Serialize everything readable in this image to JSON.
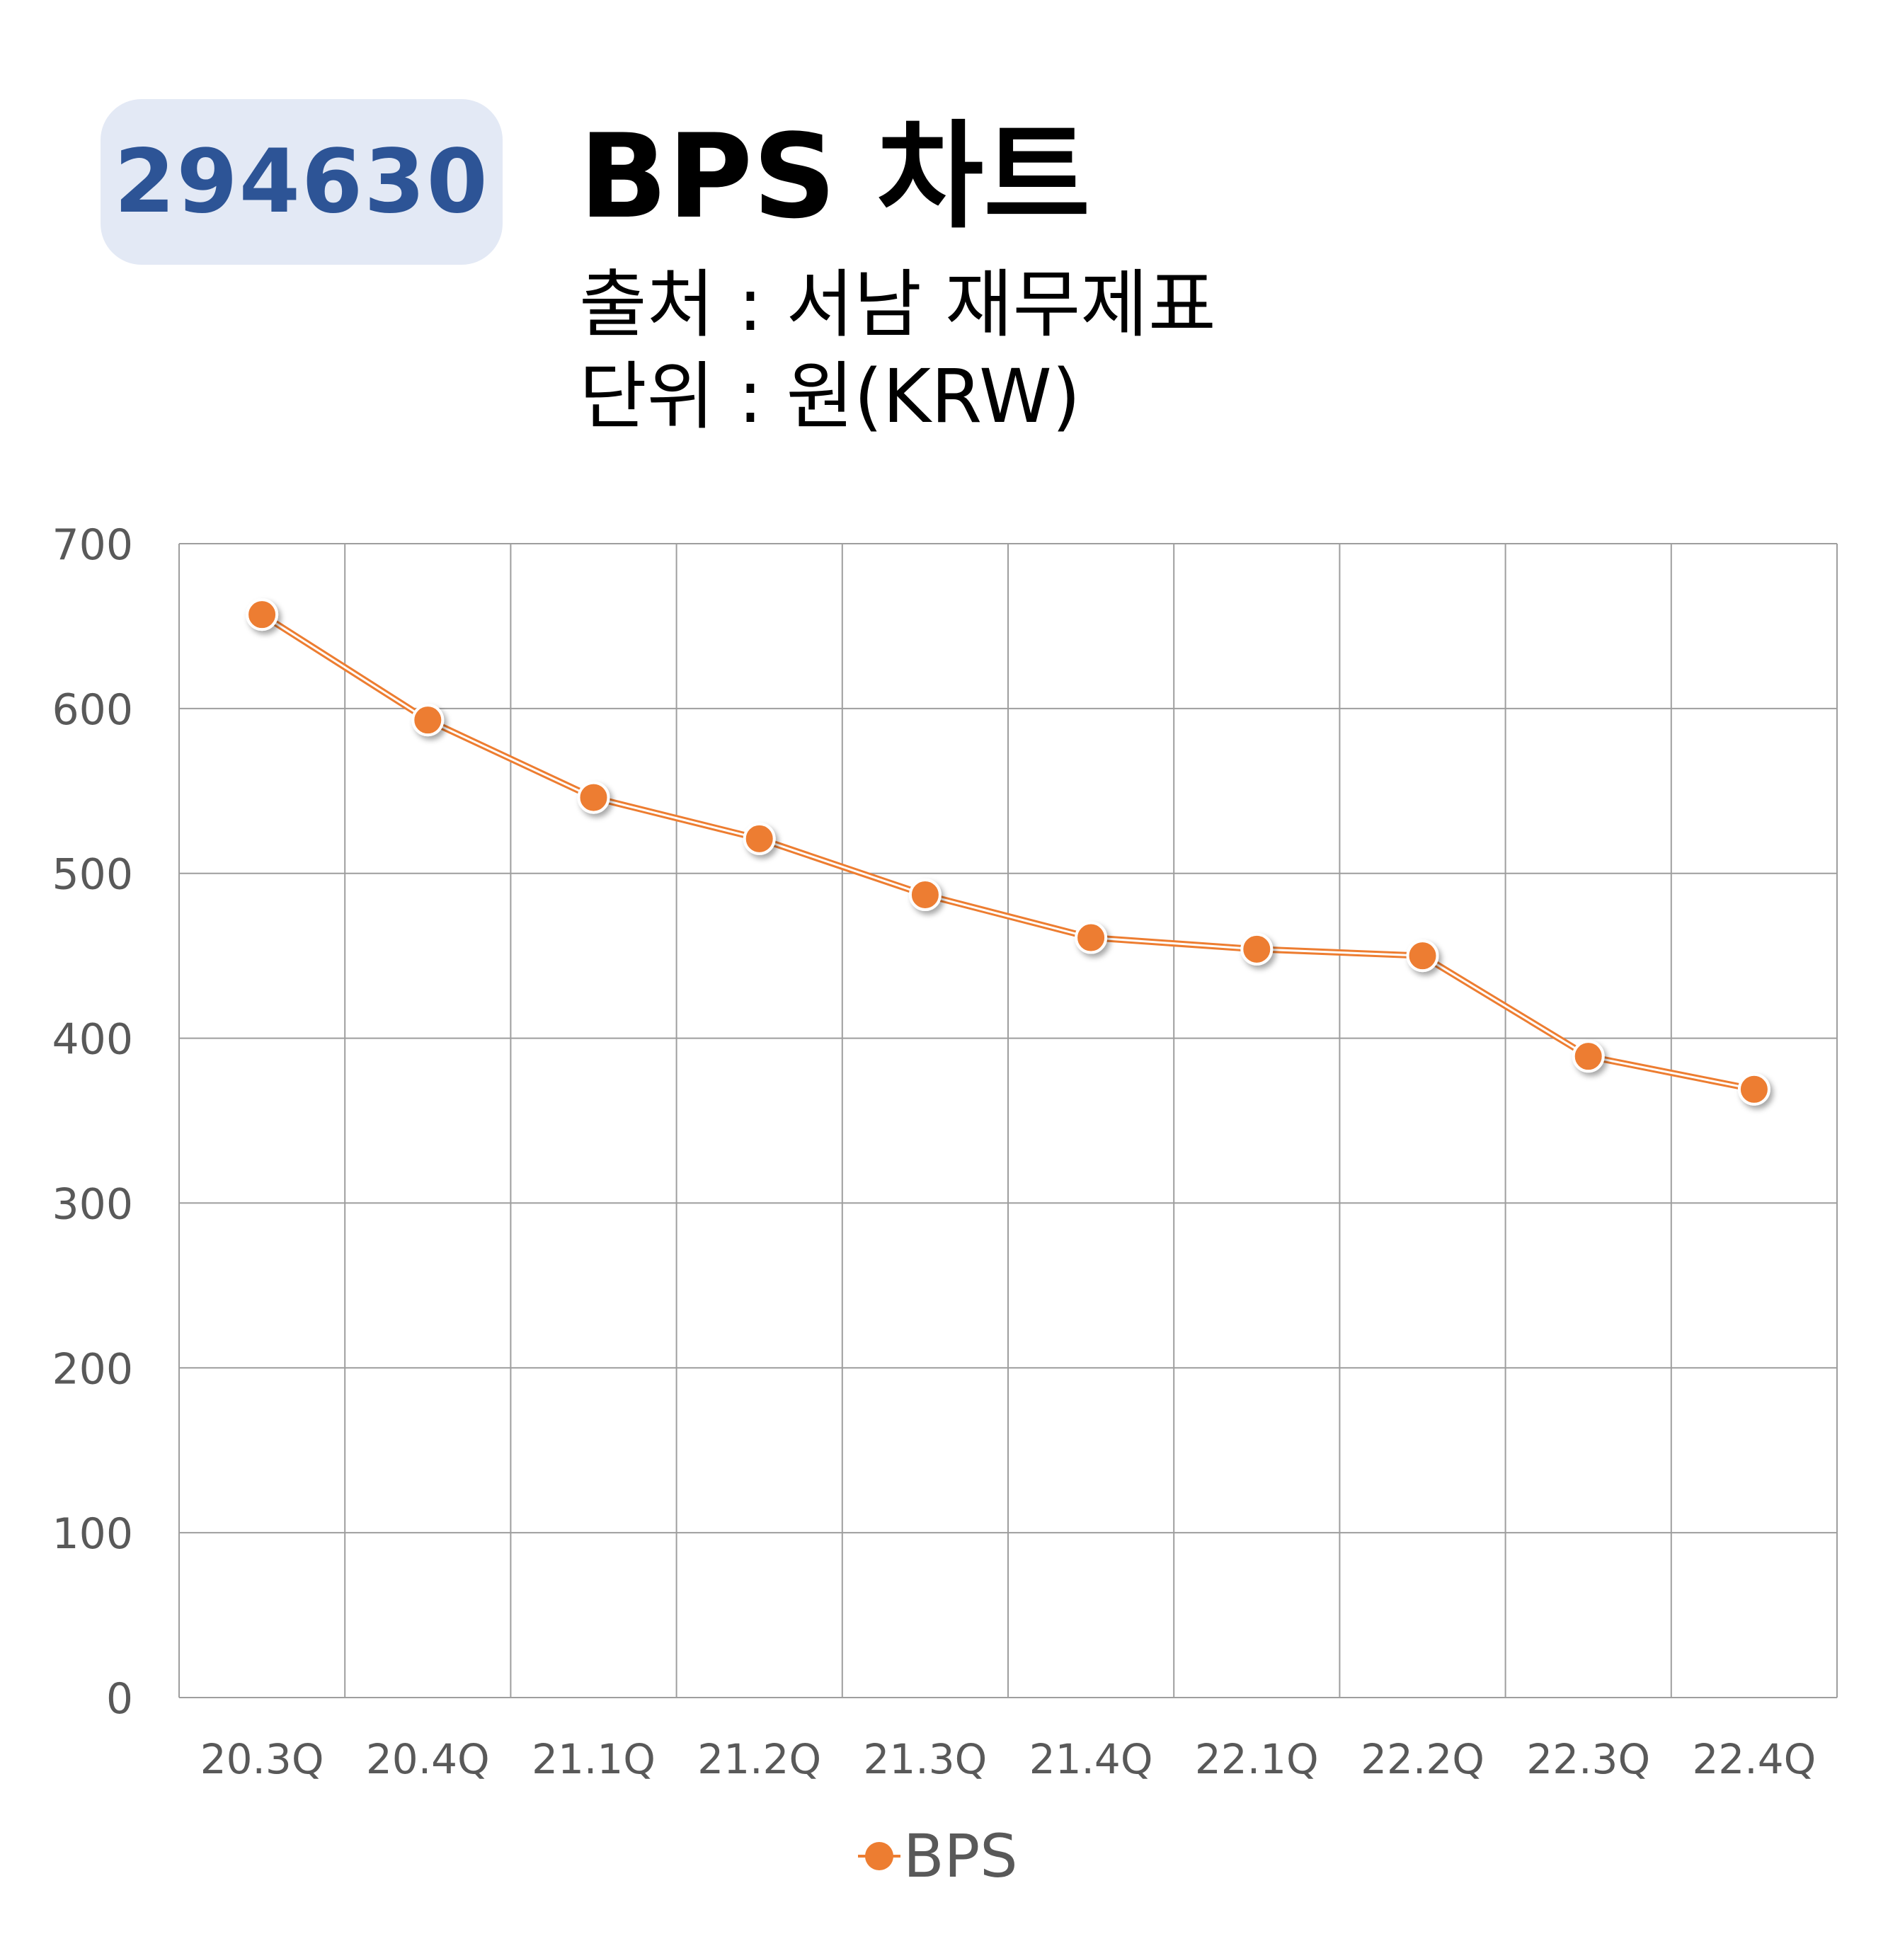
{
  "header": {
    "code": "294630",
    "title": "BPS 차트",
    "source": "출처 : 서남 재무제표",
    "unit": "단위 : 원(KRW)"
  },
  "colors": {
    "badge_bg": "#e3e9f5",
    "badge_text": "#2d5496",
    "series": "#ed7d31",
    "grid": "#9e9e9e",
    "tick_text": "#595959"
  },
  "chart_data": {
    "type": "line",
    "categories": [
      "20.3Q",
      "20.4Q",
      "21.1Q",
      "21.2Q",
      "21.3Q",
      "21.4Q",
      "22.1Q",
      "22.2Q",
      "22.3Q",
      "22.4Q"
    ],
    "series": [
      {
        "name": "BPS",
        "values": [
          657,
          593,
          546,
          521,
          487,
          461,
          454,
          450,
          389,
          369
        ]
      }
    ],
    "yticks": [
      0,
      100,
      200,
      300,
      400,
      500,
      600,
      700
    ],
    "ylim": [
      0,
      700
    ],
    "grid": true,
    "legend": "bottom"
  }
}
